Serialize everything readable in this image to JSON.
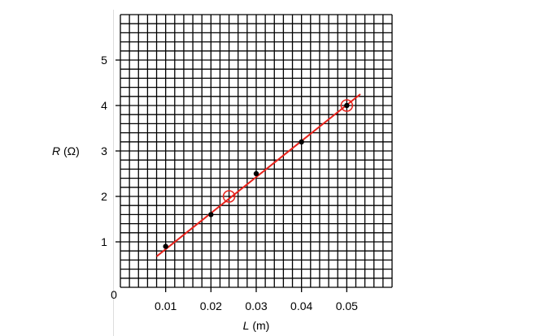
{
  "chart_data": {
    "type": "scatter",
    "xlabel_var": "L",
    "xlabel_unit": " (m)",
    "ylabel_var": "R",
    "ylabel_unit": " (Ω)",
    "xlim": [
      0,
      0.06
    ],
    "ylim": [
      0,
      6
    ],
    "grid": true,
    "origin_label": "0",
    "x_ticks": [
      0.01,
      0.02,
      0.03,
      0.04,
      0.05
    ],
    "x_tick_labels": [
      "0.01",
      "0.02",
      "0.03",
      "0.04",
      "0.05"
    ],
    "y_ticks": [
      1,
      2,
      3,
      4,
      5
    ],
    "y_tick_labels": [
      "1",
      "2",
      "3",
      "4",
      "5"
    ],
    "points": [
      {
        "x": 0.01,
        "y": 0.9
      },
      {
        "x": 0.02,
        "y": 1.6
      },
      {
        "x": 0.03,
        "y": 2.5
      },
      {
        "x": 0.04,
        "y": 3.2
      },
      {
        "x": 0.05,
        "y": 4.0
      }
    ],
    "best_fit_line": {
      "x": [
        0.008,
        0.053
      ],
      "y": [
        0.68,
        4.25
      ],
      "color": "#e8221b"
    },
    "circled_points": [
      {
        "x": 0.024,
        "y": 2.0
      },
      {
        "x": 0.05,
        "y": 4.0
      }
    ],
    "colors": {
      "grid": "#000000",
      "points": "#000000",
      "fit": "#e8221b"
    }
  }
}
